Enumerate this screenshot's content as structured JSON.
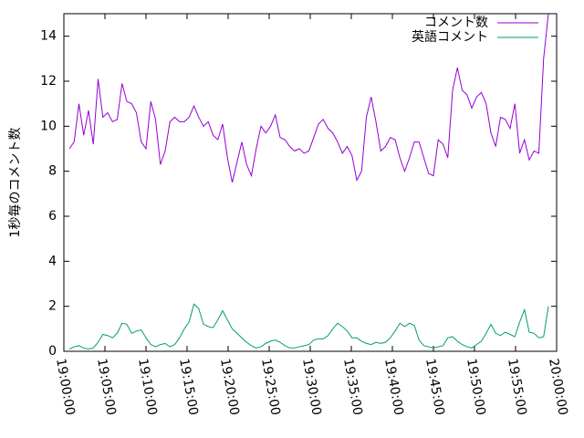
{
  "chart_data": {
    "type": "line",
    "y_label": "1秒毎のコメント数",
    "x": [
      "19:00:40",
      "19:01:15",
      "19:01:50",
      "19:02:25",
      "19:03:00",
      "19:03:35",
      "19:04:10",
      "19:04:45",
      "19:05:20",
      "19:05:55",
      "19:06:30",
      "19:07:05",
      "19:07:40",
      "19:08:15",
      "19:08:50",
      "19:09:25",
      "19:10:00",
      "19:10:35",
      "19:11:10",
      "19:11:45",
      "19:12:20",
      "19:12:55",
      "19:13:30",
      "19:14:05",
      "19:14:40",
      "19:15:15",
      "19:15:50",
      "19:16:25",
      "19:17:00",
      "19:17:35",
      "19:18:10",
      "19:18:45",
      "19:19:20",
      "19:19:55",
      "19:20:30",
      "19:21:05",
      "19:21:40",
      "19:22:15",
      "19:22:50",
      "19:23:25",
      "19:24:00",
      "19:24:35",
      "19:25:10",
      "19:25:45",
      "19:26:20",
      "19:26:55",
      "19:27:30",
      "19:28:05",
      "19:28:40",
      "19:29:15",
      "19:29:50",
      "19:30:25",
      "19:31:00",
      "19:31:35",
      "19:32:10",
      "19:32:45",
      "19:33:20",
      "19:33:55",
      "19:34:30",
      "19:35:05",
      "19:35:40",
      "19:36:15",
      "19:36:50",
      "19:37:25",
      "19:38:00",
      "19:38:35",
      "19:39:10",
      "19:39:45",
      "19:40:20",
      "19:40:55",
      "19:41:30",
      "19:42:05",
      "19:42:40",
      "19:43:15",
      "19:43:50",
      "19:44:25",
      "19:45:00",
      "19:45:35",
      "19:46:10",
      "19:46:45",
      "19:47:20",
      "19:47:55",
      "19:48:30",
      "19:49:05",
      "19:49:40",
      "19:50:15",
      "19:50:50",
      "19:51:25",
      "19:52:00",
      "19:52:35",
      "19:53:10",
      "19:53:45",
      "19:54:20",
      "19:54:55",
      "19:55:30",
      "19:56:05",
      "19:56:40",
      "19:57:15",
      "19:57:50",
      "19:58:25",
      "19:59:00"
    ],
    "series": [
      {
        "name": "コメント数",
        "color": "#9400d3",
        "values": [
          9.0,
          9.3,
          11.0,
          9.6,
          10.7,
          9.2,
          12.1,
          10.4,
          10.6,
          10.2,
          10.3,
          11.9,
          11.1,
          11.0,
          10.6,
          9.3,
          9.0,
          11.1,
          10.3,
          8.3,
          8.9,
          10.2,
          10.4,
          10.2,
          10.2,
          10.4,
          10.9,
          10.4,
          10.0,
          10.2,
          9.6,
          9.4,
          10.1,
          8.6,
          7.5,
          8.4,
          9.3,
          8.3,
          7.8,
          9.0,
          10.0,
          9.7,
          10.0,
          10.5,
          9.5,
          9.4,
          9.1,
          8.9,
          9.0,
          8.8,
          8.9,
          9.5,
          10.1,
          10.3,
          9.9,
          9.7,
          9.3,
          8.8,
          9.1,
          8.7,
          7.6,
          8.0,
          10.4,
          11.3,
          10.2,
          8.9,
          9.1,
          9.5,
          9.4,
          8.6,
          8.0,
          8.6,
          9.3,
          9.3,
          8.6,
          7.9,
          7.8,
          9.4,
          9.2,
          8.6,
          11.6,
          12.6,
          11.6,
          11.4,
          10.8,
          11.3,
          11.5,
          11.0,
          9.7,
          9.1,
          10.4,
          10.3,
          9.9,
          11.0,
          8.8,
          9.4,
          8.5,
          8.9,
          8.8,
          13,
          15
        ]
      },
      {
        "name": "英語コメント",
        "color": "#009e73",
        "values": [
          0.1,
          0.2,
          0.25,
          0.15,
          0.1,
          0.15,
          0.4,
          0.75,
          0.7,
          0.6,
          0.8,
          1.25,
          1.2,
          0.8,
          0.9,
          0.95,
          0.6,
          0.3,
          0.2,
          0.3,
          0.35,
          0.2,
          0.3,
          0.6,
          1.0,
          1.3,
          2.1,
          1.9,
          1.2,
          1.1,
          1.05,
          1.4,
          1.8,
          1.4,
          1.0,
          0.8,
          0.6,
          0.4,
          0.25,
          0.15,
          0.2,
          0.35,
          0.45,
          0.5,
          0.4,
          0.25,
          0.15,
          0.15,
          0.2,
          0.25,
          0.3,
          0.5,
          0.55,
          0.55,
          0.7,
          1.0,
          1.25,
          1.1,
          0.9,
          0.6,
          0.6,
          0.45,
          0.35,
          0.3,
          0.4,
          0.35,
          0.4,
          0.6,
          0.9,
          1.25,
          1.1,
          1.25,
          1.15,
          0.5,
          0.25,
          0.2,
          0.15,
          0.2,
          0.25,
          0.6,
          0.65,
          0.45,
          0.3,
          0.2,
          0.15,
          0.3,
          0.45,
          0.8,
          1.2,
          0.8,
          0.7,
          0.85,
          0.75,
          0.65,
          1.3,
          1.85,
          0.85,
          0.8,
          0.6,
          0.65,
          2.0
        ]
      }
    ],
    "xlim": [
      "19:00:00",
      "20:00:00"
    ],
    "xticks": [
      "19:00:00",
      "19:05:00",
      "19:10:00",
      "19:15:00",
      "19:20:00",
      "19:25:00",
      "19:30:00",
      "19:35:00",
      "19:40:00",
      "19:45:00",
      "19:50:00",
      "19:55:00",
      "20:00:00"
    ],
    "ylim": [
      0,
      15
    ],
    "yticks": [
      0,
      2,
      4,
      6,
      8,
      10,
      12,
      14
    ],
    "legend": "top-right"
  }
}
